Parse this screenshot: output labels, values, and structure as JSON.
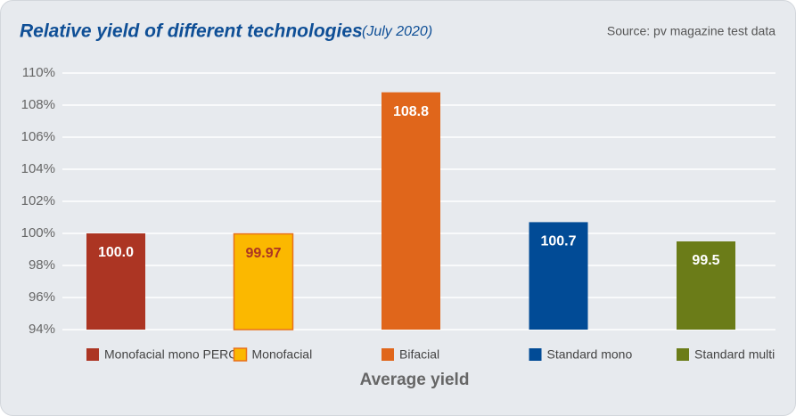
{
  "chart_data": {
    "type": "bar",
    "title": "Relative yield of different technologies",
    "subtitle": "(July 2020)",
    "source": "Source: pv magazine test data",
    "categories": [
      "Average yield"
    ],
    "series": [
      {
        "name": "Monofacial mono PERC",
        "color": "#ac3523",
        "label_color": "#ffffff",
        "values": [
          100
        ],
        "value_labels": [
          "100.0"
        ]
      },
      {
        "name": "Monofacial",
        "color": "#fbb800",
        "border": "#e8701a",
        "label_color": "#ac3523",
        "values": [
          99.97
        ]
      },
      {
        "name": "Bifacial",
        "color": "#e0661b",
        "label_color": "#ffffff",
        "values": [
          108.8
        ]
      },
      {
        "name": "Standard mono",
        "color": "#014b96",
        "label_color": "#ffffff",
        "values": [
          100.7
        ]
      },
      {
        "name": "Standard multi",
        "color": "#6b7c18",
        "label_color": "#ffffff",
        "values": [
          99.5
        ]
      }
    ],
    "ylim": [
      94,
      110
    ],
    "yticks": [
      {
        "value": 94,
        "label": "94%"
      },
      {
        "value": 96,
        "label": "96%"
      },
      {
        "value": 98,
        "label": "98%"
      },
      {
        "value": 100,
        "label": "100%"
      },
      {
        "value": 102,
        "label": "102%"
      },
      {
        "value": 104,
        "label": "104%"
      },
      {
        "value": 106,
        "label": "106%"
      },
      {
        "value": 108,
        "label": "108%"
      },
      {
        "value": 110,
        "label": "110%"
      }
    ],
    "grid": true
  }
}
